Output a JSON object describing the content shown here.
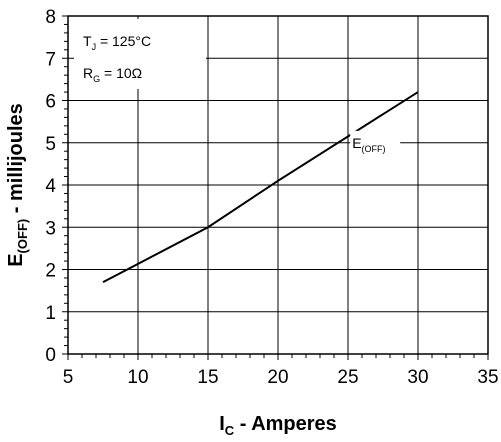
{
  "chart_data": {
    "type": "line",
    "x_ticks": [
      5,
      10,
      15,
      20,
      25,
      30,
      35
    ],
    "y_ticks": [
      0,
      1,
      2,
      3,
      4,
      5,
      6,
      7,
      8
    ],
    "xlim": [
      5,
      35
    ],
    "ylim": [
      0,
      8
    ],
    "grid": true,
    "minor_ticks_x": 4,
    "minor_ticks_y": 4,
    "xlabel": {
      "main": "I",
      "sub": "C",
      "rest": " - Amperes"
    },
    "ylabel": {
      "main": "E",
      "sub": "(OFF)",
      "rest": " - millijoules"
    },
    "series": [
      {
        "name": {
          "main": "E",
          "sub": "(OFF)"
        },
        "x": [
          7.5,
          15,
          20,
          30
        ],
        "y": [
          1.7,
          3.0,
          4.1,
          6.2
        ],
        "color": "#000000"
      }
    ],
    "annotations": [
      {
        "main": "T",
        "sub": "J",
        "rest": " = 125°C"
      },
      {
        "main": "R",
        "sub": "G",
        "rest": " = 10Ω"
      }
    ]
  }
}
